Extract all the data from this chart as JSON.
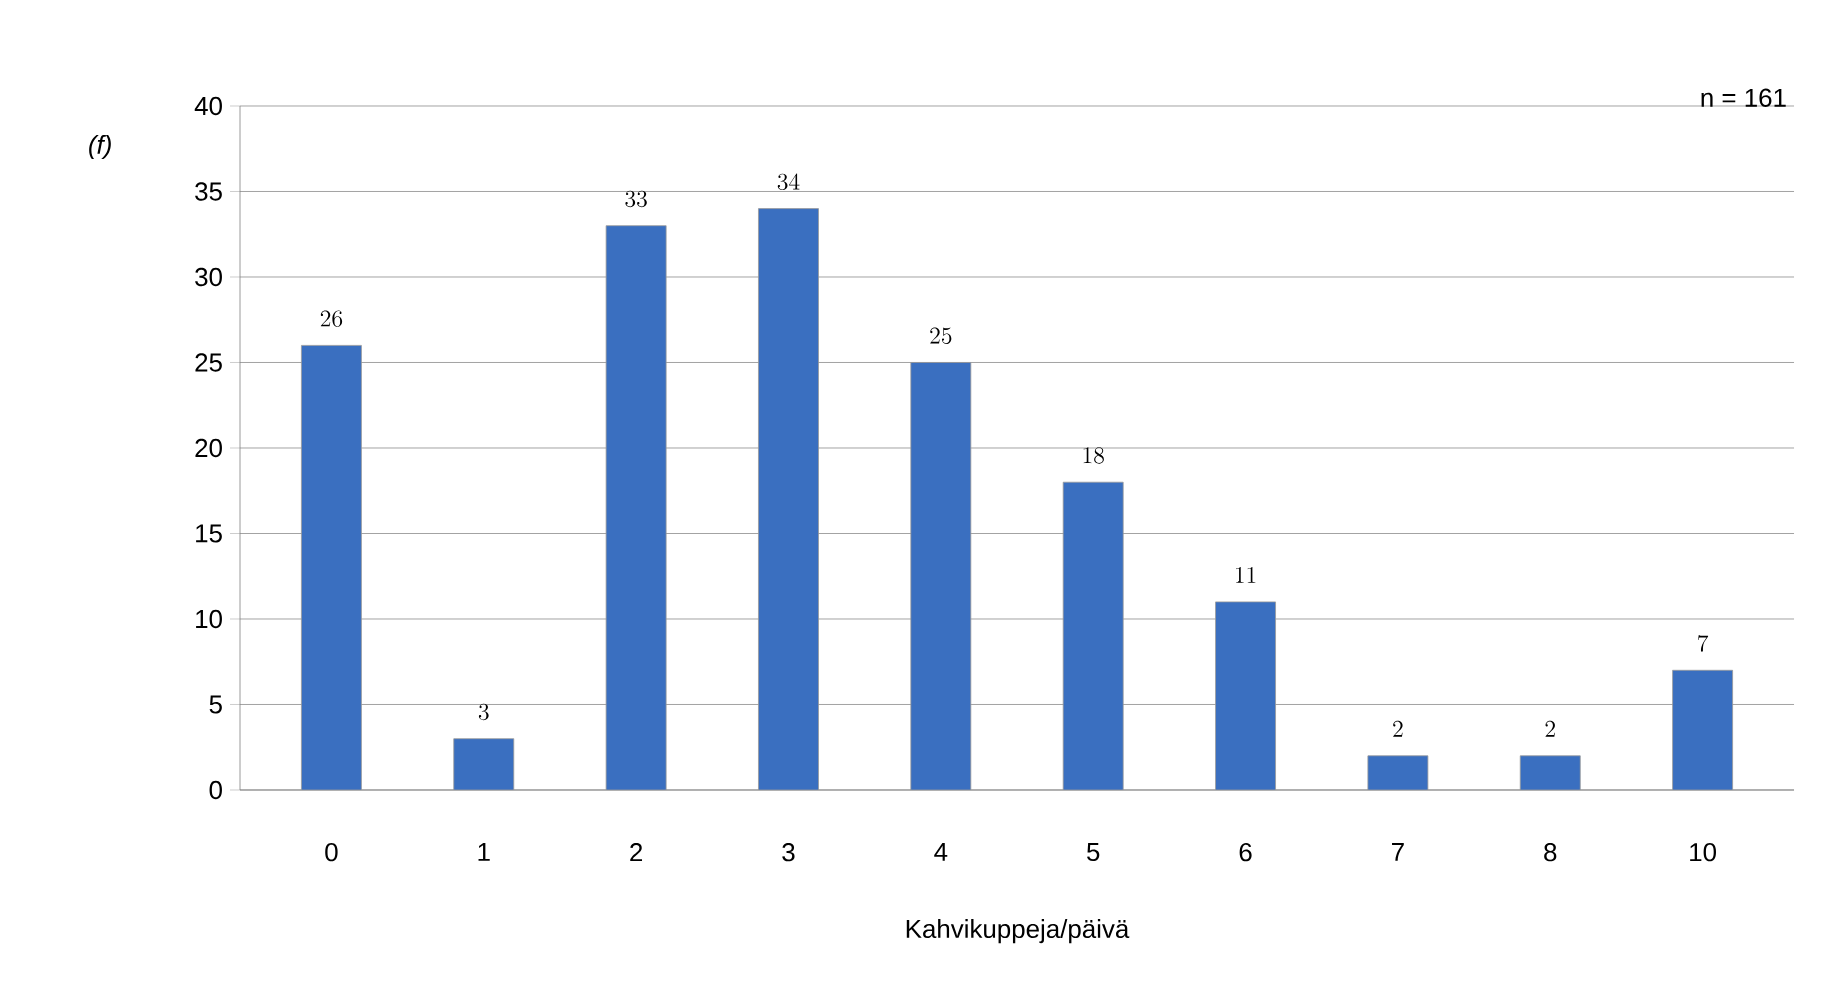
{
  "chart_data": {
    "type": "bar",
    "ylabel": "(f)",
    "xlabel": "Kahvikuppeja/päivä",
    "annotations": [
      "n = 161"
    ],
    "categories": [
      "0",
      "1",
      "2",
      "3",
      "4",
      "5",
      "6",
      "7",
      "8",
      "10"
    ],
    "values": [
      26,
      3,
      33,
      34,
      25,
      18,
      11,
      2,
      2,
      7
    ],
    "color": "#3a6fc0",
    "ylim": [
      0,
      40
    ],
    "yticks": [
      0,
      5,
      10,
      15,
      20,
      25,
      30,
      35,
      40
    ],
    "grid": "y",
    "data_labels": true
  }
}
